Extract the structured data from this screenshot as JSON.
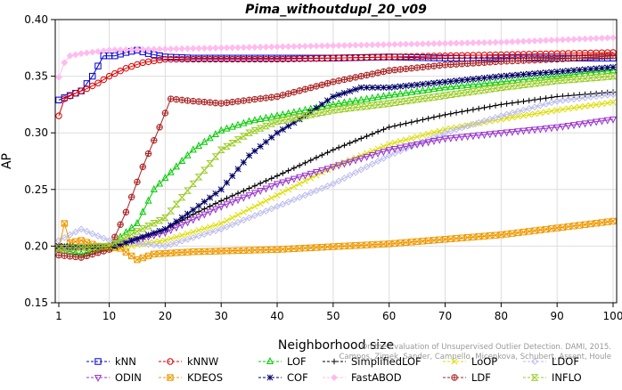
{
  "chart_data": {
    "type": "line",
    "title": "Pima_withoutdupl_20_v09",
    "xlabel": "Neighborhood size",
    "ylabel": "AP",
    "xlim": [
      1,
      100
    ],
    "ylim": [
      0.15,
      0.4
    ],
    "x_ticks": [
      1,
      10,
      20,
      30,
      40,
      50,
      60,
      70,
      80,
      90,
      100
    ],
    "y_ticks": [
      0.15,
      0.2,
      0.25,
      0.3,
      0.35,
      0.4
    ],
    "y_tick_labels": [
      "0.15",
      "0.20",
      "0.25",
      "0.30",
      "0.35",
      "0.40"
    ],
    "grid": true,
    "legend_position": "bottom",
    "watermark": "Campos, Zimek, Sander, Campello, Micenkova, Schubert, Assent, Houle. On the Evaluation of Unsupervised Outlier Detection. DAMI, 2015.",
    "watermark_lines": [
      "Campos, Zimek, Sander, Campello, Micenkova, Schubert, Assent, Houle",
      "On the Evaluation of Unsupervised Outlier Detection. DAMI, 2015."
    ],
    "series": [
      {
        "name": "kNN",
        "color": "#0000cc",
        "marker": "square",
        "points": [
          [
            1,
            0.329
          ],
          [
            3,
            0.333
          ],
          [
            5,
            0.337
          ],
          [
            7,
            0.35
          ],
          [
            9,
            0.368
          ],
          [
            11,
            0.368
          ],
          [
            13,
            0.371
          ],
          [
            15,
            0.373
          ],
          [
            17,
            0.37
          ],
          [
            20,
            0.367
          ],
          [
            25,
            0.366
          ],
          [
            30,
            0.366
          ],
          [
            40,
            0.366
          ],
          [
            50,
            0.366
          ],
          [
            60,
            0.367
          ],
          [
            70,
            0.366
          ],
          [
            80,
            0.366
          ],
          [
            90,
            0.366
          ],
          [
            100,
            0.366
          ]
        ]
      },
      {
        "name": "kNNW",
        "color": "#dd0000",
        "marker": "circle",
        "points": [
          [
            1,
            0.315
          ],
          [
            2,
            0.33
          ],
          [
            4,
            0.335
          ],
          [
            6,
            0.339
          ],
          [
            8,
            0.344
          ],
          [
            10,
            0.35
          ],
          [
            13,
            0.357
          ],
          [
            16,
            0.362
          ],
          [
            20,
            0.365
          ],
          [
            30,
            0.365
          ],
          [
            40,
            0.365
          ],
          [
            50,
            0.366
          ],
          [
            60,
            0.367
          ],
          [
            70,
            0.368
          ],
          [
            80,
            0.369
          ],
          [
            90,
            0.37
          ],
          [
            100,
            0.371
          ]
        ]
      },
      {
        "name": "LOF",
        "color": "#00cc00",
        "marker": "triangle-up",
        "points": [
          [
            1,
            0.197
          ],
          [
            5,
            0.193
          ],
          [
            10,
            0.2
          ],
          [
            15,
            0.22
          ],
          [
            18,
            0.25
          ],
          [
            21,
            0.265
          ],
          [
            25,
            0.285
          ],
          [
            30,
            0.302
          ],
          [
            35,
            0.31
          ],
          [
            40,
            0.315
          ],
          [
            50,
            0.325
          ],
          [
            60,
            0.333
          ],
          [
            70,
            0.34
          ],
          [
            80,
            0.345
          ],
          [
            90,
            0.35
          ],
          [
            100,
            0.355
          ]
        ]
      },
      {
        "name": "SimplifiedLOF",
        "color": "#000000",
        "marker": "plus",
        "points": [
          [
            1,
            0.2
          ],
          [
            10,
            0.198
          ],
          [
            20,
            0.215
          ],
          [
            25,
            0.228
          ],
          [
            30,
            0.24
          ],
          [
            40,
            0.262
          ],
          [
            50,
            0.285
          ],
          [
            60,
            0.305
          ],
          [
            70,
            0.316
          ],
          [
            80,
            0.325
          ],
          [
            90,
            0.332
          ],
          [
            100,
            0.336
          ]
        ]
      },
      {
        "name": "LoOP",
        "color": "#dddd00",
        "marker": "x",
        "points": [
          [
            1,
            0.199
          ],
          [
            10,
            0.197
          ],
          [
            20,
            0.205
          ],
          [
            30,
            0.22
          ],
          [
            40,
            0.245
          ],
          [
            50,
            0.27
          ],
          [
            60,
            0.29
          ],
          [
            70,
            0.303
          ],
          [
            80,
            0.312
          ],
          [
            90,
            0.32
          ],
          [
            100,
            0.327
          ]
        ]
      },
      {
        "name": "LDOF",
        "color": "#bbbbee",
        "marker": "diamond",
        "points": [
          [
            1,
            0.205
          ],
          [
            5,
            0.215
          ],
          [
            10,
            0.205
          ],
          [
            20,
            0.2
          ],
          [
            30,
            0.215
          ],
          [
            40,
            0.235
          ],
          [
            50,
            0.255
          ],
          [
            60,
            0.28
          ],
          [
            70,
            0.3
          ],
          [
            80,
            0.315
          ],
          [
            90,
            0.328
          ],
          [
            100,
            0.334
          ]
        ]
      },
      {
        "name": "ODIN",
        "color": "#9933cc",
        "marker": "triangle-down",
        "points": [
          [
            1,
            0.198
          ],
          [
            10,
            0.2
          ],
          [
            20,
            0.212
          ],
          [
            30,
            0.235
          ],
          [
            40,
            0.255
          ],
          [
            50,
            0.27
          ],
          [
            60,
            0.285
          ],
          [
            70,
            0.295
          ],
          [
            80,
            0.3
          ],
          [
            90,
            0.305
          ],
          [
            100,
            0.312
          ]
        ]
      },
      {
        "name": "KDEOS",
        "color": "#ee9900",
        "marker": "boxed-x",
        "points": [
          [
            1,
            0.198
          ],
          [
            2,
            0.22
          ],
          [
            3,
            0.203
          ],
          [
            5,
            0.205
          ],
          [
            8,
            0.2
          ],
          [
            12,
            0.198
          ],
          [
            15,
            0.188
          ],
          [
            18,
            0.193
          ],
          [
            25,
            0.195
          ],
          [
            40,
            0.197
          ],
          [
            60,
            0.202
          ],
          [
            80,
            0.21
          ],
          [
            90,
            0.216
          ],
          [
            100,
            0.222
          ]
        ]
      },
      {
        "name": "COF",
        "color": "#000066",
        "marker": "star",
        "points": [
          [
            1,
            0.2
          ],
          [
            10,
            0.198
          ],
          [
            20,
            0.215
          ],
          [
            25,
            0.232
          ],
          [
            30,
            0.25
          ],
          [
            35,
            0.28
          ],
          [
            40,
            0.3
          ],
          [
            45,
            0.315
          ],
          [
            50,
            0.332
          ],
          [
            55,
            0.34
          ],
          [
            60,
            0.34
          ],
          [
            70,
            0.345
          ],
          [
            80,
            0.35
          ],
          [
            90,
            0.354
          ],
          [
            100,
            0.358
          ]
        ]
      },
      {
        "name": "FastABOD",
        "color": "#ffbbee",
        "marker": "diamond-filled",
        "points": [
          [
            1,
            0.349
          ],
          [
            2,
            0.362
          ],
          [
            3,
            0.368
          ],
          [
            5,
            0.37
          ],
          [
            10,
            0.373
          ],
          [
            20,
            0.374
          ],
          [
            30,
            0.375
          ],
          [
            40,
            0.376
          ],
          [
            50,
            0.377
          ],
          [
            60,
            0.378
          ],
          [
            70,
            0.379
          ],
          [
            80,
            0.38
          ],
          [
            90,
            0.382
          ],
          [
            100,
            0.384
          ]
        ]
      },
      {
        "name": "LDF",
        "color": "#aa2222",
        "marker": "circle-plus",
        "points": [
          [
            1,
            0.192
          ],
          [
            5,
            0.19
          ],
          [
            10,
            0.197
          ],
          [
            13,
            0.23
          ],
          [
            16,
            0.27
          ],
          [
            19,
            0.305
          ],
          [
            21,
            0.33
          ],
          [
            25,
            0.328
          ],
          [
            30,
            0.326
          ],
          [
            40,
            0.332
          ],
          [
            50,
            0.345
          ],
          [
            60,
            0.355
          ],
          [
            70,
            0.36
          ],
          [
            80,
            0.363
          ],
          [
            90,
            0.365
          ],
          [
            100,
            0.368
          ]
        ]
      },
      {
        "name": "INFLO",
        "color": "#99cc22",
        "marker": "hourglass",
        "points": [
          [
            1,
            0.198
          ],
          [
            10,
            0.2
          ],
          [
            15,
            0.213
          ],
          [
            20,
            0.225
          ],
          [
            25,
            0.255
          ],
          [
            30,
            0.285
          ],
          [
            35,
            0.3
          ],
          [
            40,
            0.31
          ],
          [
            50,
            0.32
          ],
          [
            60,
            0.326
          ],
          [
            70,
            0.333
          ],
          [
            80,
            0.34
          ],
          [
            90,
            0.346
          ],
          [
            100,
            0.35
          ]
        ]
      }
    ]
  }
}
